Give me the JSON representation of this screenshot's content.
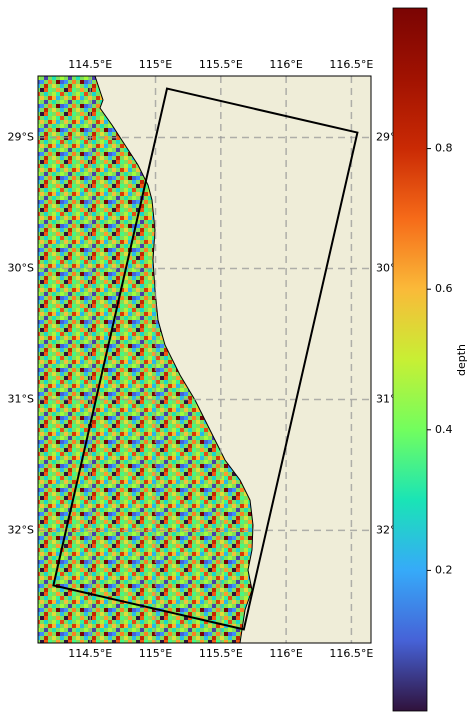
{
  "chart_data": {
    "type": "map",
    "xlim": [
      114.1,
      116.65
    ],
    "ylim": [
      -32.86,
      -28.53
    ],
    "xticks": [
      {
        "value": 114.5,
        "label": "114.5°E"
      },
      {
        "value": 115,
        "label": "115°E"
      },
      {
        "value": 115.5,
        "label": "115.5°E"
      },
      {
        "value": 116,
        "label": "116°E"
      },
      {
        "value": 116.5,
        "label": "116.5°E"
      }
    ],
    "yticks": [
      {
        "value": -29,
        "label": "29°S"
      },
      {
        "value": -30,
        "label": "30°S"
      },
      {
        "value": -31,
        "label": "31°S"
      },
      {
        "value": -32,
        "label": "32°S"
      }
    ],
    "grid": true,
    "polygon": {
      "lon": [
        115.088,
        116.546,
        115.676,
        114.218
      ],
      "lat": [
        -28.626,
        -28.962,
        -32.756,
        -32.42
      ],
      "color": "#000000"
    },
    "colorbar": {
      "label": "depth",
      "lim": [
        0,
        1
      ],
      "ticks": [
        0.2,
        0.4,
        0.6,
        0.8
      ]
    }
  }
}
